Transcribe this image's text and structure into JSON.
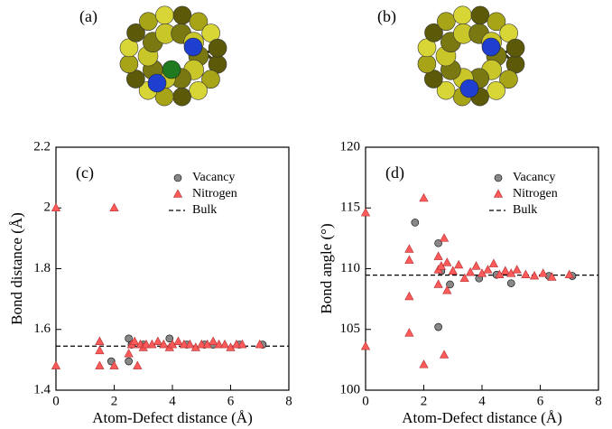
{
  "figure_labels": [
    "(a)",
    "(b)"
  ],
  "chart_data": [
    {
      "type": "scatter",
      "label": "(c)",
      "xlabel": "Atom-Defect distance (Å)",
      "ylabel": "Bond distance (Å)",
      "xlim": [
        0,
        8
      ],
      "xticks": [
        0,
        2,
        4,
        6,
        8
      ],
      "ylim": [
        1.4,
        2.2
      ],
      "yticks": [
        1.4,
        1.6,
        1.8,
        2,
        2.2
      ],
      "series": [
        {
          "name": "Vacancy",
          "marker": "circle",
          "color": "#888888",
          "x": [
            1.9,
            2.5,
            2.5,
            2.6,
            3.0,
            3.9,
            4.5,
            5.1,
            5.4,
            6.3,
            7.1
          ],
          "values": [
            1.495,
            1.57,
            1.495,
            1.55,
            1.55,
            1.57,
            1.55,
            1.55,
            1.55,
            1.55,
            1.55
          ]
        },
        {
          "name": "Nitrogen",
          "marker": "triangle",
          "color": "#ff5a5a",
          "x": [
            0,
            0,
            1.5,
            1.5,
            1.5,
            2.0,
            2.0,
            2.5,
            2.6,
            2.7,
            2.8,
            2.9,
            3.0,
            3.1,
            3.3,
            3.5,
            3.7,
            3.9,
            4.0,
            4.2,
            4.4,
            4.6,
            4.8,
            5.0,
            5.2,
            5.4,
            5.6,
            5.8,
            6.0,
            6.2,
            6.4,
            7.0
          ],
          "values": [
            2.0,
            1.48,
            1.56,
            1.53,
            1.48,
            2.0,
            1.48,
            1.52,
            1.55,
            1.56,
            1.48,
            1.55,
            1.54,
            1.55,
            1.55,
            1.56,
            1.55,
            1.54,
            1.55,
            1.56,
            1.55,
            1.55,
            1.54,
            1.55,
            1.55,
            1.56,
            1.55,
            1.55,
            1.54,
            1.55,
            1.55,
            1.55
          ]
        },
        {
          "name": "Bulk",
          "marker": "dashed",
          "color": "#000000",
          "x": [
            0,
            8
          ],
          "values": [
            1.545,
            1.545
          ]
        }
      ]
    },
    {
      "type": "scatter",
      "label": "(d)",
      "xlabel": "Atom-Defect distance (Å)",
      "ylabel": "Bond angle (°)",
      "xlim": [
        0,
        8
      ],
      "xticks": [
        0,
        2,
        4,
        6,
        8
      ],
      "ylim": [
        100,
        120
      ],
      "yticks": [
        100,
        105,
        110,
        115,
        120
      ],
      "series": [
        {
          "name": "Vacancy",
          "marker": "circle",
          "color": "#888888",
          "x": [
            1.7,
            2.5,
            2.5,
            2.6,
            2.9,
            3.9,
            4.5,
            5.0,
            6.3,
            7.1
          ],
          "values": [
            113.8,
            112.1,
            105.2,
            109.8,
            108.7,
            109.2,
            109.5,
            108.8,
            109.4,
            109.4
          ]
        },
        {
          "name": "Nitrogen",
          "marker": "triangle",
          "color": "#ff5a5a",
          "x": [
            0,
            0,
            1.5,
            1.5,
            1.5,
            1.5,
            2.0,
            2.0,
            2.5,
            2.5,
            2.5,
            2.6,
            2.7,
            2.7,
            2.8,
            2.8,
            3.0,
            3.2,
            3.4,
            3.6,
            3.8,
            4.0,
            4.2,
            4.4,
            4.6,
            4.8,
            5.0,
            5.2,
            5.5,
            5.8,
            6.1,
            6.4,
            7.0
          ],
          "values": [
            114.6,
            103.6,
            111.6,
            110.7,
            107.7,
            104.7,
            115.8,
            102.1,
            111.0,
            109.9,
            108.7,
            110.2,
            112.5,
            102.9,
            110.5,
            108.2,
            109.8,
            110.3,
            109.2,
            109.7,
            110.2,
            109.6,
            109.9,
            110.4,
            109.5,
            109.8,
            109.6,
            109.9,
            109.5,
            109.4,
            109.6,
            109.3,
            109.5
          ]
        },
        {
          "name": "Bulk",
          "marker": "dashed",
          "color": "#000000",
          "x": [
            0,
            8
          ],
          "values": [
            109.47,
            109.47
          ]
        }
      ]
    }
  ]
}
